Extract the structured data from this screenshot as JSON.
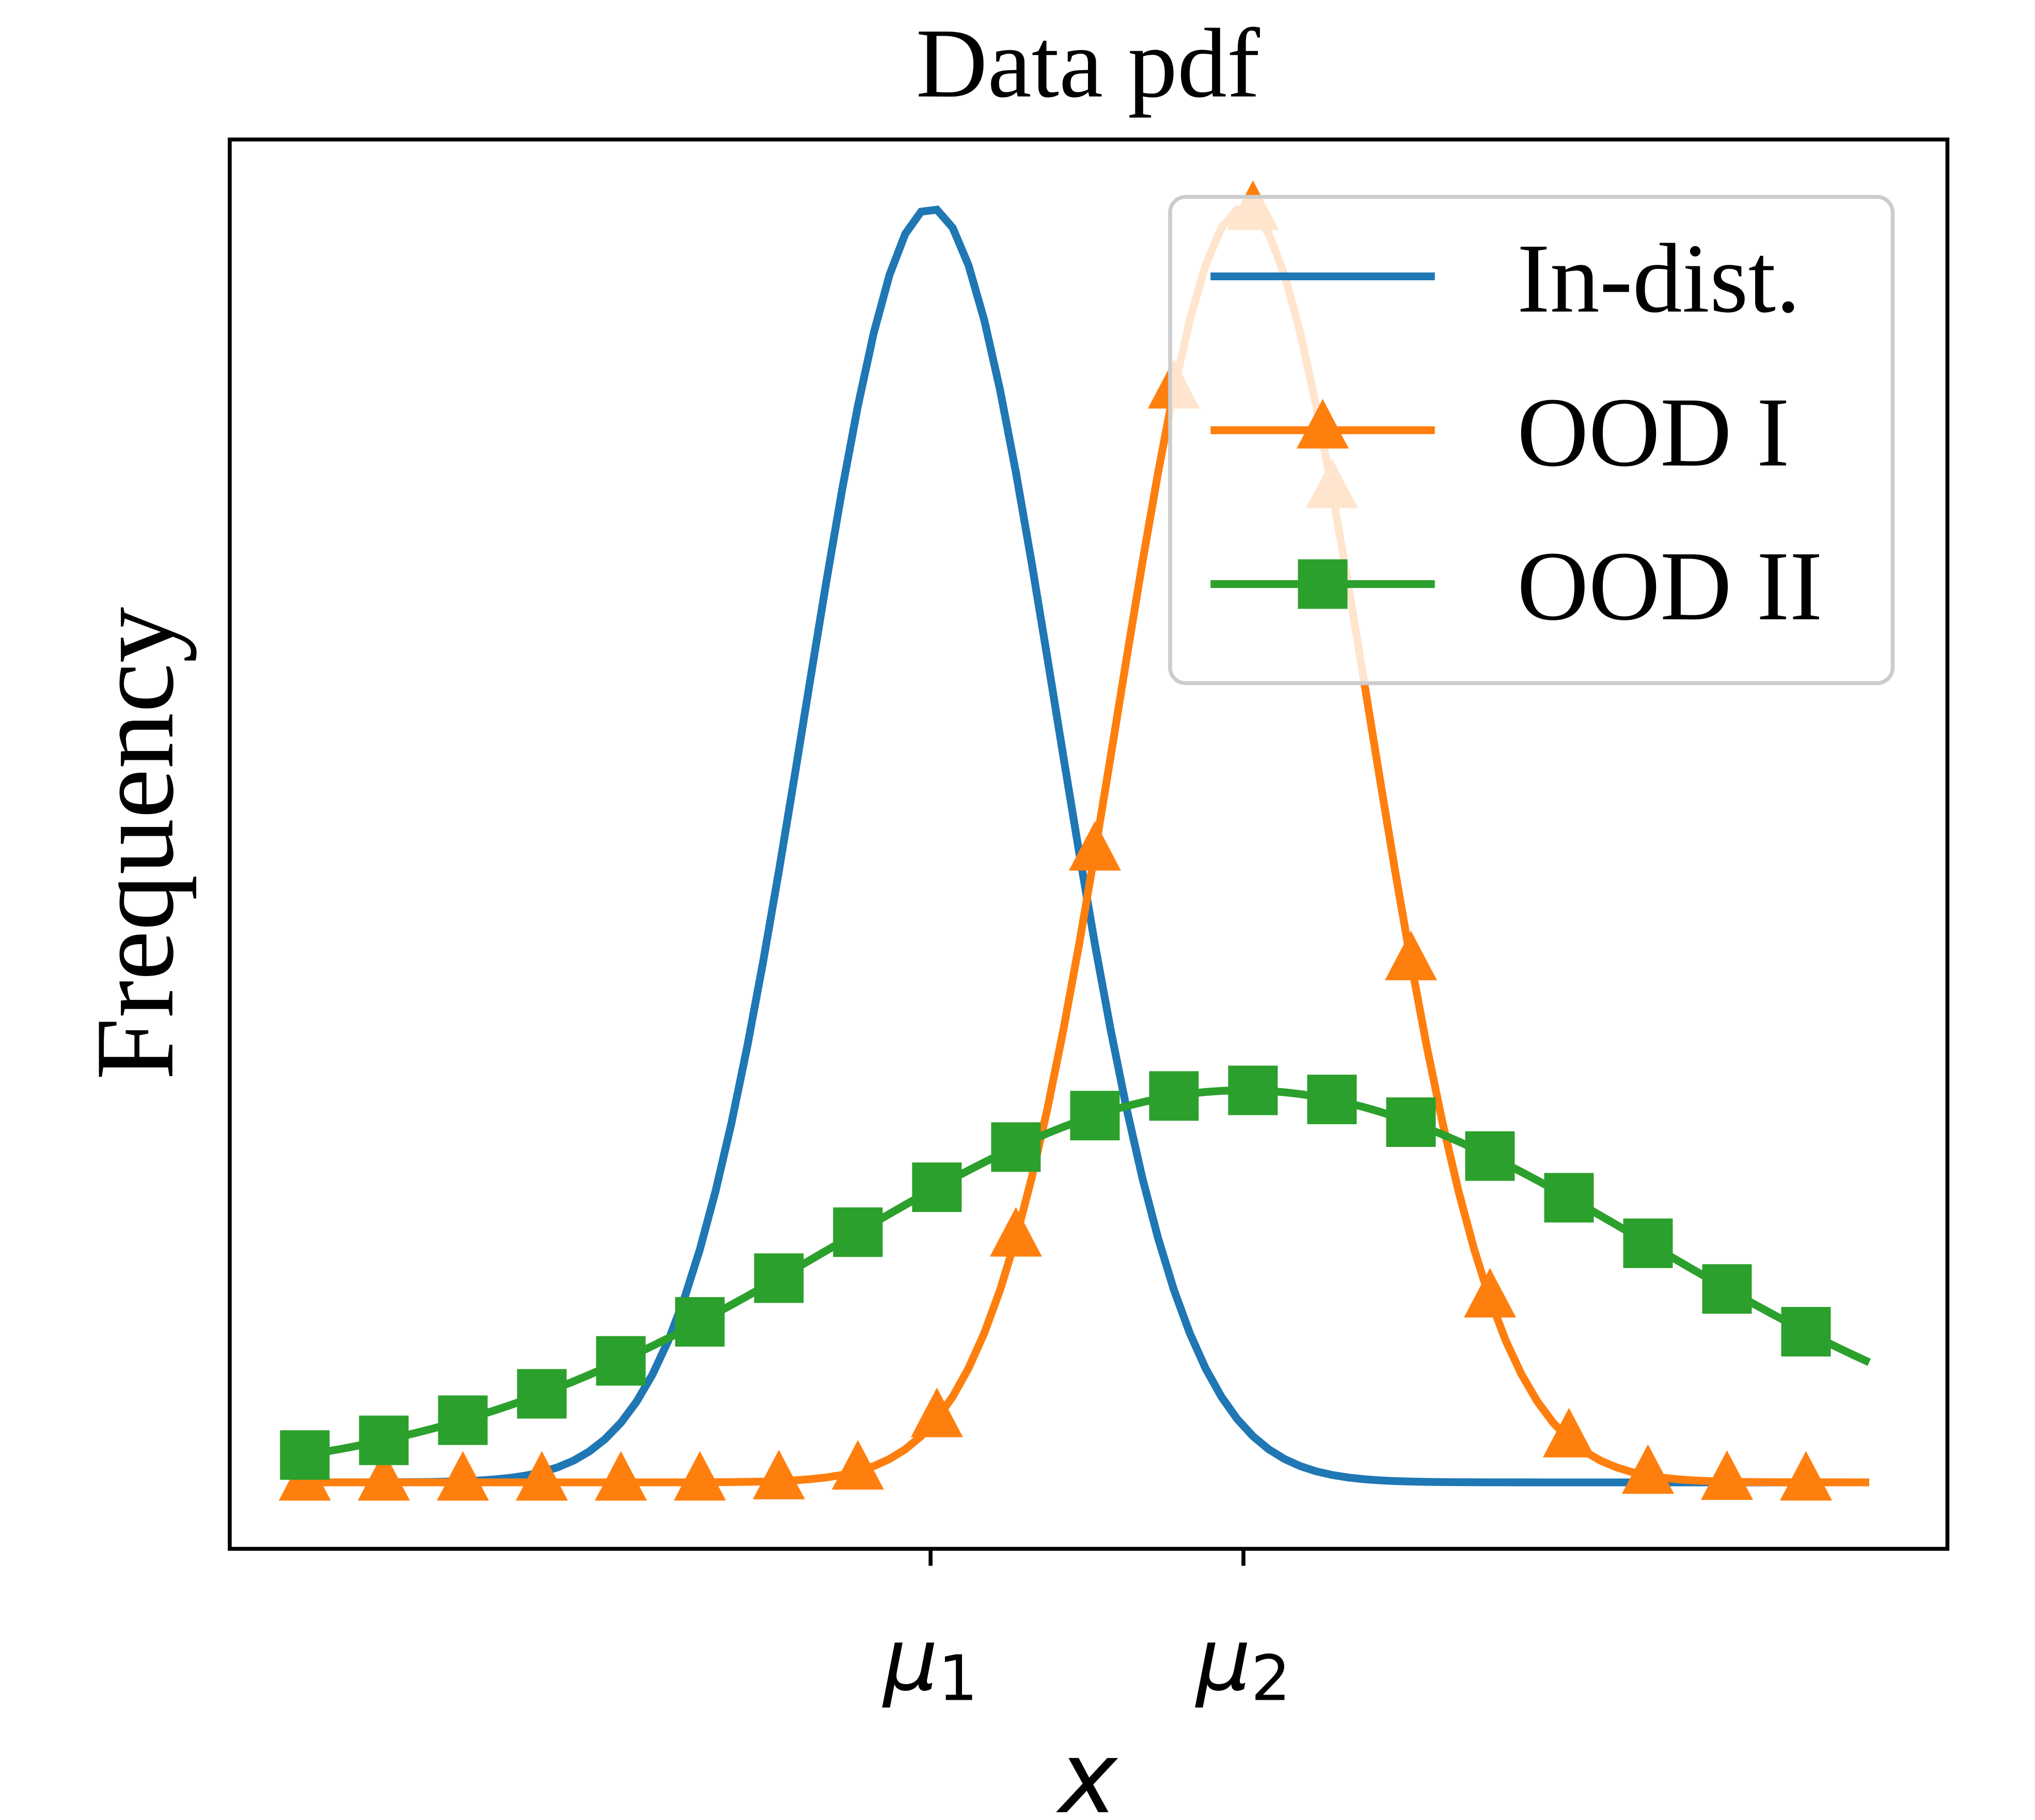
{
  "chart_data": {
    "type": "line",
    "title": "Data pdf",
    "xlabel": "x",
    "ylabel": "Frequency",
    "xlim": [
      -2.24,
      3.25
    ],
    "ylim": [
      -0.052,
      1.051
    ],
    "x_range": [
      -2,
      3
    ],
    "samples": 100,
    "marker_every": 5,
    "x_ticks": [
      {
        "value": 0,
        "label": "μ",
        "sub": "1"
      },
      {
        "value": 1,
        "label": "μ",
        "sub": "2"
      }
    ],
    "y_ticks": [],
    "grid": false,
    "legend_position": "top-right",
    "series": [
      {
        "name": "In-dist.",
        "distribution": "normal",
        "mean": 0,
        "std": 0.4,
        "color": "#1f77b4",
        "marker": "none"
      },
      {
        "name": "OOD I",
        "distribution": "normal",
        "mean": 1,
        "std": 0.4,
        "color": "#ff7f0e",
        "marker": "triangle"
      },
      {
        "name": "OOD II",
        "distribution": "normal",
        "mean": 1,
        "std": 1.3,
        "color": "#2ca02c",
        "marker": "square"
      }
    ]
  }
}
